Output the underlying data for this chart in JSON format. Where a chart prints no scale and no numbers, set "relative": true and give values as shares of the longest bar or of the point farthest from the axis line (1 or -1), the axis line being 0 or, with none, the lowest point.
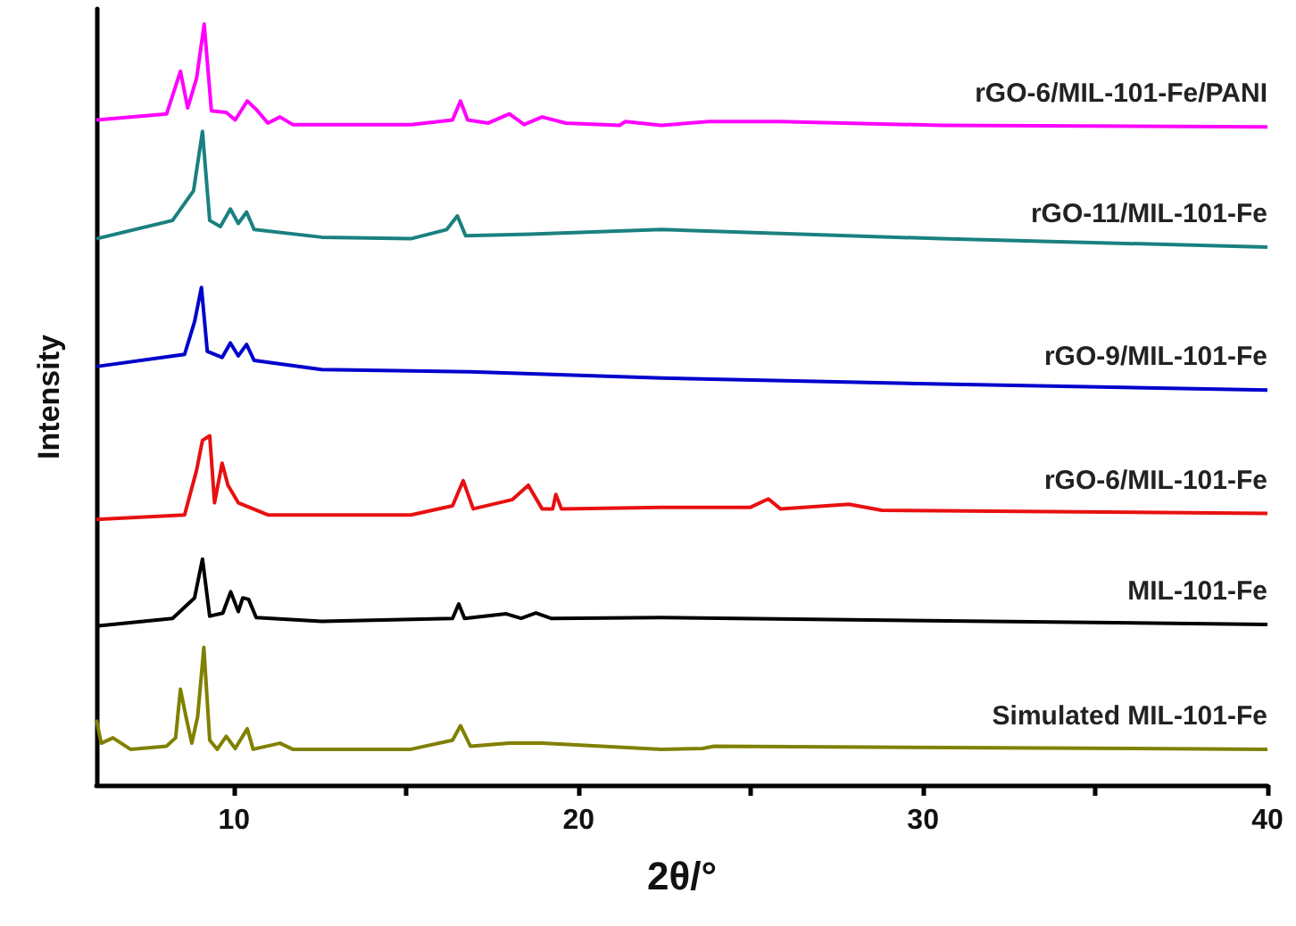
{
  "chart_data": {
    "type": "line",
    "relative": true,
    "xlabel": "2θ/°",
    "ylabel": "Intensity",
    "xlim": [
      6,
      40
    ],
    "xticks": [
      10,
      {
        "value": 15,
        "label": null
      },
      20,
      {
        "value": 25,
        "label": null
      },
      30,
      {
        "value": 35,
        "label": null
      },
      40
    ],
    "series": [
      {
        "name": "rGO-6/MIL-101-Fe/PANI",
        "color": "#ff00ff",
        "x": [
          6,
          8.04,
          8.44,
          8.65,
          8.91,
          9.13,
          9.34,
          9.77,
          10.03,
          10.38,
          10.64,
          10.98,
          11.33,
          11.7,
          15.13,
          16.34,
          16.57,
          16.78,
          17.38,
          17.99,
          18.42,
          18.94,
          19.63,
          21.19,
          21.36,
          22.4,
          23.78,
          25.86,
          30.53,
          40
        ],
        "values": [
          0.874,
          0.882,
          0.938,
          0.89,
          0.929,
          1,
          0.886,
          0.884,
          0.874,
          0.899,
          0.888,
          0.87,
          0.878,
          0.868,
          0.868,
          0.874,
          0.899,
          0.874,
          0.87,
          0.882,
          0.868,
          0.878,
          0.87,
          0.867,
          0.872,
          0.867,
          0.872,
          0.872,
          0.867,
          0.865
        ]
      },
      {
        "name": "rGO-11/MIL-101-Fe",
        "color": "#1a8080",
        "x": [
          6,
          8.21,
          8.82,
          9.08,
          9.29,
          9.6,
          9.89,
          10.12,
          10.36,
          10.58,
          12.54,
          15.13,
          16.17,
          16.48,
          16.72,
          18.59,
          22.4,
          30.53,
          40
        ],
        "values": [
          0.718,
          0.742,
          0.781,
          0.859,
          0.742,
          0.734,
          0.757,
          0.738,
          0.753,
          0.73,
          0.72,
          0.718,
          0.73,
          0.748,
          0.722,
          0.724,
          0.73,
          0.718,
          0.707
        ]
      },
      {
        "name": "rGO-9/MIL-101-Fe",
        "color": "#0000cc",
        "x": [
          6,
          8.56,
          8.85,
          9.05,
          9.22,
          9.65,
          9.89,
          10.12,
          10.36,
          10.58,
          12.54,
          16.86,
          22.4,
          30.53,
          40
        ],
        "values": [
          0.55,
          0.566,
          0.609,
          0.654,
          0.57,
          0.562,
          0.581,
          0.564,
          0.579,
          0.558,
          0.546,
          0.543,
          0.535,
          0.527,
          0.519
        ]
      },
      {
        "name": "rGO-6/MIL-101-Fe",
        "color": "#e81010",
        "x": [
          6,
          8.56,
          8.91,
          9.08,
          9.29,
          9.43,
          9.65,
          9.82,
          10.12,
          10.98,
          15.13,
          16.34,
          16.65,
          16.94,
          18.07,
          18.54,
          18.94,
          19.25,
          19.34,
          19.5,
          22.4,
          24.99,
          25.51,
          25.86,
          27.85,
          28.8,
          40
        ],
        "values": [
          0.349,
          0.355,
          0.414,
          0.453,
          0.459,
          0.371,
          0.423,
          0.394,
          0.371,
          0.355,
          0.355,
          0.367,
          0.4,
          0.363,
          0.375,
          0.394,
          0.363,
          0.363,
          0.382,
          0.363,
          0.365,
          0.365,
          0.376,
          0.363,
          0.369,
          0.361,
          0.357
        ]
      },
      {
        "name": "MIL-101-Fe",
        "color": "#000000",
        "x": [
          6,
          8.21,
          8.85,
          9.08,
          9.29,
          9.67,
          9.9,
          10.12,
          10.25,
          10.42,
          10.64,
          12.54,
          16.34,
          16.52,
          16.69,
          17.9,
          18.33,
          18.76,
          19.2,
          22.4,
          40
        ],
        "values": [
          0.209,
          0.219,
          0.246,
          0.297,
          0.222,
          0.226,
          0.254,
          0.228,
          0.246,
          0.244,
          0.22,
          0.215,
          0.219,
          0.238,
          0.219,
          0.225,
          0.219,
          0.226,
          0.219,
          0.22,
          0.211
        ]
      },
      {
        "name": "Simulated MIL-101-Fe",
        "color": "#808000",
        "x": [
          6,
          6.14,
          6.48,
          6.99,
          8.03,
          8.3,
          8.44,
          8.6,
          8.77,
          8.94,
          9.12,
          9.29,
          9.51,
          9.77,
          10.03,
          10.38,
          10.55,
          11.33,
          11.7,
          15.13,
          16.34,
          16.57,
          16.86,
          17.99,
          18.94,
          22.4,
          23.6,
          23.94,
          40
        ],
        "values": [
          0.086,
          0.055,
          0.062,
          0.047,
          0.051,
          0.062,
          0.126,
          0.09,
          0.055,
          0.09,
          0.181,
          0.059,
          0.047,
          0.064,
          0.048,
          0.074,
          0.047,
          0.055,
          0.047,
          0.047,
          0.059,
          0.078,
          0.051,
          0.055,
          0.055,
          0.047,
          0.048,
          0.051,
          0.047
        ]
      }
    ]
  }
}
